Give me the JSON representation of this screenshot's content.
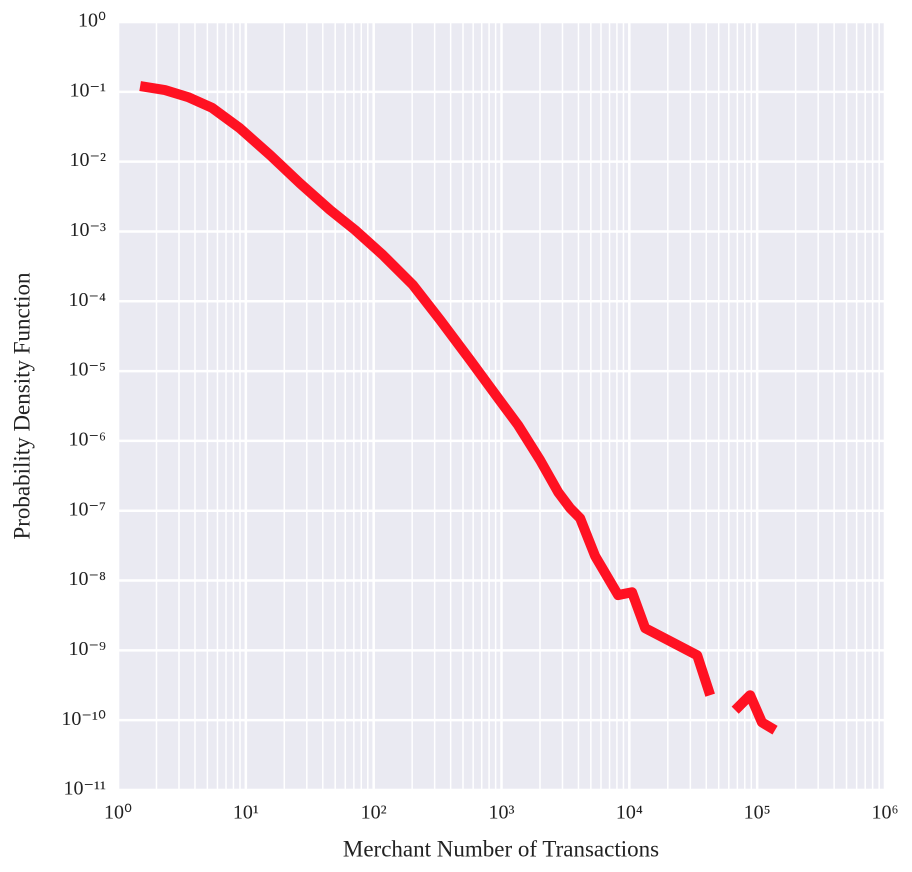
{
  "chart_data": {
    "type": "line",
    "xlabel": "Merchant Number of Transactions",
    "ylabel": "Probability Density Function",
    "xscale": "log",
    "yscale": "log",
    "grid": true,
    "minor_grid_x": true,
    "background": "#eaeaf2",
    "xlim": [
      1,
      1000000
    ],
    "ylim": [
      1e-11,
      1
    ],
    "xticks": [
      {
        "value": 1,
        "label": "10⁰"
      },
      {
        "value": 10,
        "label": "10¹"
      },
      {
        "value": 100,
        "label": "10²"
      },
      {
        "value": 1000,
        "label": "10³"
      },
      {
        "value": 10000,
        "label": "10⁴"
      },
      {
        "value": 100000,
        "label": "10⁵"
      },
      {
        "value": 1000000,
        "label": "10⁶"
      }
    ],
    "yticks": [
      {
        "value": 1,
        "label": "10⁰"
      },
      {
        "value": 0.1,
        "label": "10⁻¹"
      },
      {
        "value": 0.01,
        "label": "10⁻²"
      },
      {
        "value": 0.001,
        "label": "10⁻³"
      },
      {
        "value": 0.0001,
        "label": "10⁻⁴"
      },
      {
        "value": 1e-05,
        "label": "10⁻⁵"
      },
      {
        "value": 1e-06,
        "label": "10⁻⁶"
      },
      {
        "value": 1e-07,
        "label": "10⁻⁷"
      },
      {
        "value": 1e-08,
        "label": "10⁻⁸"
      },
      {
        "value": 1e-09,
        "label": "10⁻⁹"
      },
      {
        "value": 1e-10,
        "label": "10⁻¹⁰"
      },
      {
        "value": 1e-11,
        "label": "10⁻¹¹"
      }
    ],
    "x": [
      1.49,
      2.33,
      3.53,
      5.44,
      9.0,
      15.5,
      26.5,
      45.6,
      71.5,
      118,
      203,
      331,
      568,
      940,
      1349,
      2005,
      2773,
      3443,
      4121,
      5400,
      8170,
      10500,
      13300,
      33960,
      42900,
      null,
      67300,
      88100,
      109000,
      138000
    ],
    "series": [
      {
        "color": "#ff1122",
        "values": [
          0.121,
          0.106,
          0.084,
          0.059,
          0.03,
          0.0124,
          0.0049,
          0.00203,
          0.00105,
          0.00046,
          0.000171,
          5.4e-05,
          1.44e-05,
          4.1e-06,
          1.68e-06,
          5.3e-07,
          1.85e-07,
          1.09e-07,
          7.8e-08,
          2.24e-08,
          6.2e-09,
          6.8e-09,
          2.08e-09,
          8.5e-10,
          2.28e-10,
          null,
          1.39e-10,
          2.28e-10,
          9.3e-11,
          7.2e-11
        ]
      }
    ]
  }
}
